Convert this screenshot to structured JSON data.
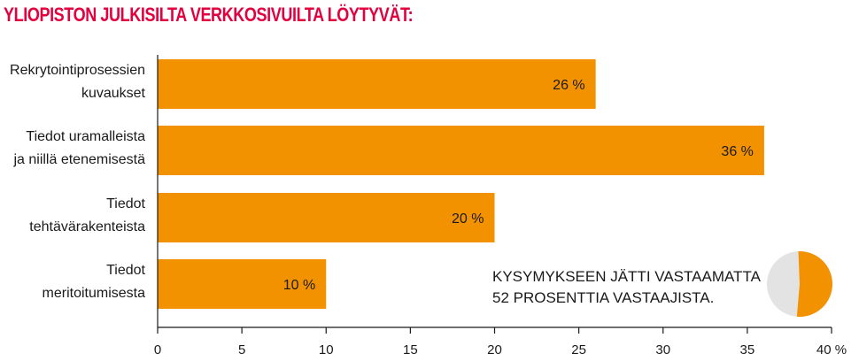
{
  "chart_data": {
    "type": "bar",
    "orientation": "horizontal",
    "title": "YLIOPISTON JULKISILTA VERKKOSIVUILTA LÖYTYVÄT:",
    "categories": [
      [
        "Rekrytointiprosessien",
        "kuvaukset"
      ],
      [
        "Tiedot uramalleista",
        "ja niillä etenemisestä"
      ],
      [
        "Tiedot",
        "tehtävärakenteista"
      ],
      [
        "Tiedot",
        "meritoitumisesta"
      ]
    ],
    "values": [
      26,
      36,
      20,
      10
    ],
    "value_labels": [
      "26 %",
      "36 %",
      "20 %",
      "10 %"
    ],
    "xlim": [
      0,
      40
    ],
    "x_ticks": [
      0,
      5,
      10,
      15,
      20,
      25,
      30,
      35,
      40
    ],
    "x_tick_labels": [
      "0",
      "5",
      "10",
      "15",
      "20",
      "25",
      "30",
      "35",
      "40 %"
    ],
    "grid": false,
    "bar_color": "#f39200",
    "note": [
      "KYSYMYKSEEN JÄTTI VASTAAMATTA",
      "52 PROSENTTIA VASTAAJISTA."
    ],
    "pie": {
      "values": [
        52,
        48
      ],
      "colors": [
        "#f39200",
        "#e3e3e3"
      ]
    }
  }
}
